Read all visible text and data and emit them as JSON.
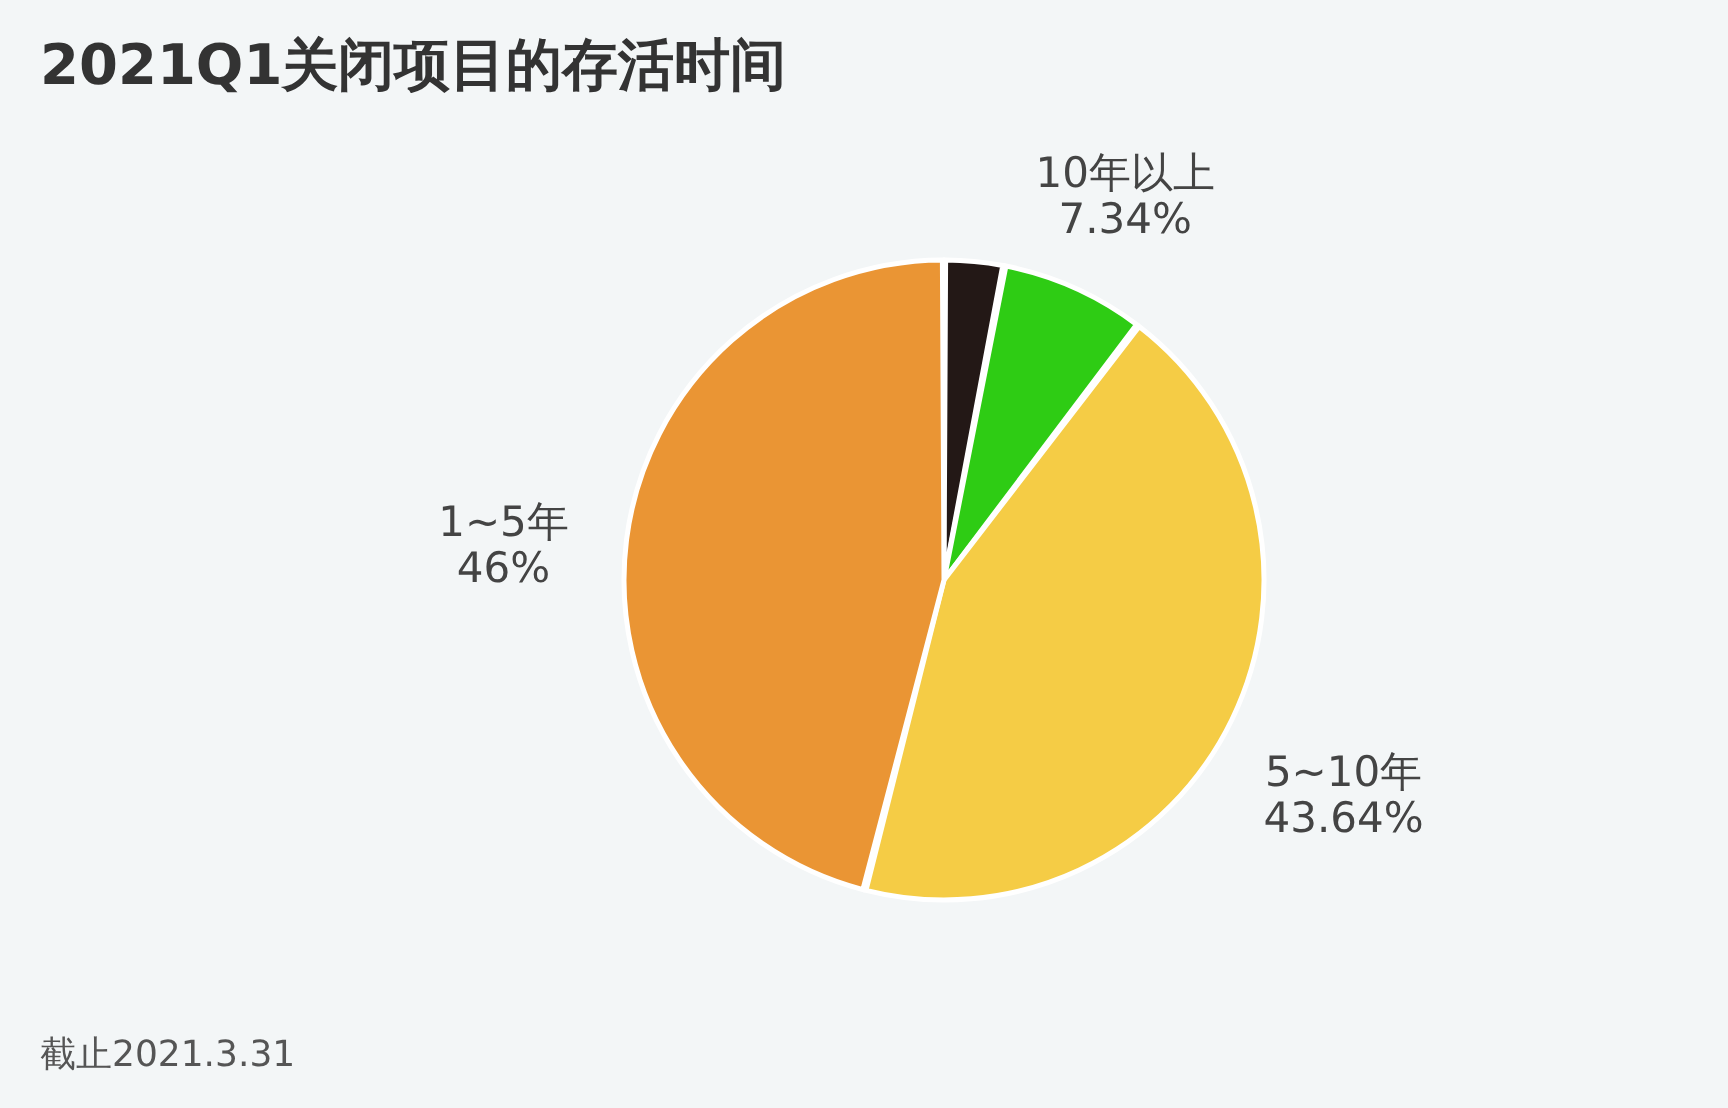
{
  "chart_data": {
    "type": "pie",
    "title": "2021Q1关闭项目的存活时间",
    "categories": [
      null,
      "10年以上",
      "5~10年",
      "1~5年"
    ],
    "values": [
      3.02,
      7.34,
      43.64,
      46
    ],
    "value_labels": [
      null,
      "7.34%",
      "43.64%",
      "46%"
    ],
    "colors": [
      "#231816",
      "#2ecc14",
      "#f5cc45",
      "#ea9534"
    ],
    "annotations": [
      "截止2021.3.31"
    ]
  }
}
